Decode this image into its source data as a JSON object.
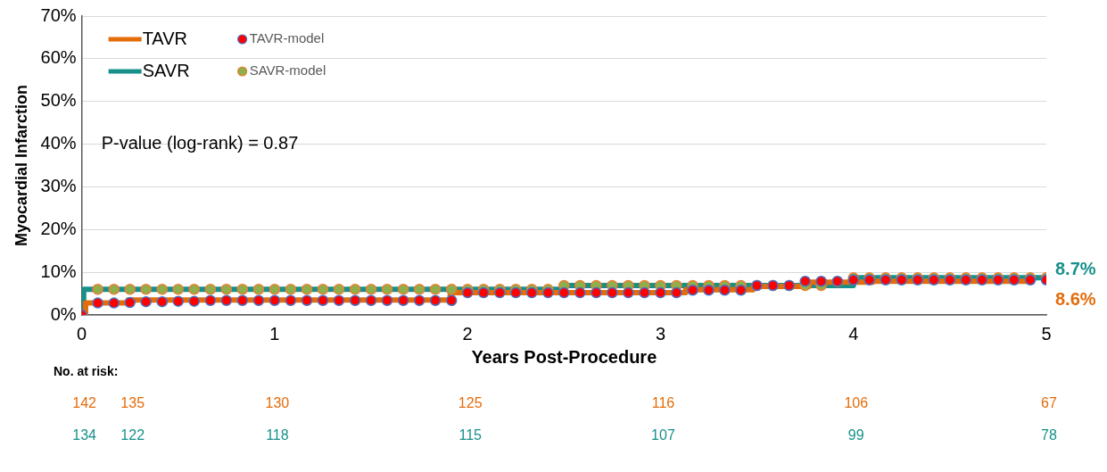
{
  "chart_data": {
    "type": "step",
    "xlabel": "Years Post-Procedure",
    "ylabel": "Myocardial Infarction",
    "xlim": [
      0,
      5
    ],
    "xticks": [
      0,
      1,
      2,
      3,
      4,
      5
    ],
    "ylim": [
      0,
      70
    ],
    "yticks": [
      {
        "value": 0,
        "label": "0%"
      },
      {
        "value": 10,
        "label": "10%"
      },
      {
        "value": 20,
        "label": "20%"
      },
      {
        "value": 30,
        "label": "30%"
      },
      {
        "value": 40,
        "label": "40%"
      },
      {
        "value": 50,
        "label": "50%"
      },
      {
        "value": 60,
        "label": "60%"
      },
      {
        "value": 70,
        "label": "70%"
      }
    ],
    "grid": "y",
    "legend": "top left",
    "x": [
      0,
      0.083,
      0.167,
      0.25,
      0.333,
      0.417,
      0.5,
      0.583,
      0.667,
      0.75,
      0.833,
      0.917,
      1,
      1.083,
      1.167,
      1.25,
      1.333,
      1.417,
      1.5,
      1.583,
      1.667,
      1.75,
      1.833,
      1.917,
      2,
      2.083,
      2.167,
      2.25,
      2.333,
      2.417,
      2.5,
      2.583,
      2.667,
      2.75,
      2.833,
      2.917,
      3,
      3.083,
      3.167,
      3.25,
      3.333,
      3.417,
      3.5,
      3.583,
      3.667,
      3.75,
      3.833,
      3.917,
      4,
      4.083,
      4.167,
      4.25,
      4.333,
      4.417,
      4.5,
      4.583,
      4.667,
      4.75,
      4.833,
      4.917,
      5
    ],
    "series": [
      {
        "name": "TAVR",
        "color": "#e46c0a",
        "x": [
          0,
          0.02,
          0.24,
          1.91,
          3.13,
          3.48,
          3.77,
          4.1,
          4.94
        ],
        "values": [
          0,
          2.8,
          3.5,
          5.2,
          5.9,
          6.7,
          7.7,
          7.9,
          7.9
        ]
      },
      {
        "name": "SAVR",
        "color": "#17908a",
        "x": [
          0,
          0.01,
          2.5,
          4.0,
          5.0
        ],
        "values": [
          0,
          6.0,
          6.9,
          8.7,
          8.7
        ]
      },
      {
        "name": "TAVR-model",
        "type": "scatter",
        "marker": "circle",
        "color": "#ff0000",
        "values": [
          0,
          2.8,
          2.8,
          2.9,
          3.1,
          3.1,
          3.2,
          3.2,
          3.4,
          3.4,
          3.4,
          3.4,
          3.4,
          3.4,
          3.4,
          3.4,
          3.4,
          3.4,
          3.4,
          3.4,
          3.4,
          3.4,
          3.4,
          3.4,
          5.2,
          5.2,
          5.2,
          5.2,
          5.2,
          5.2,
          5.2,
          5.2,
          5.2,
          5.2,
          5.2,
          5.2,
          5.2,
          5.2,
          5.8,
          5.8,
          5.8,
          5.8,
          6.9,
          6.9,
          6.9,
          7.9,
          7.9,
          7.9,
          8.2,
          8.2,
          8.2,
          8.2,
          8.2,
          8.2,
          8.2,
          8.2,
          8.2,
          8.2,
          8.2,
          8.2,
          8.2
        ]
      },
      {
        "name": "SAVR-model",
        "type": "scatter",
        "marker": "circle",
        "color": "#8db04c",
        "values": [
          0,
          6.0,
          6.0,
          6.0,
          6.0,
          6.0,
          6.0,
          6.0,
          6.0,
          6.0,
          6.0,
          6.0,
          6.0,
          6.0,
          6.0,
          6.0,
          6.0,
          6.0,
          6.0,
          6.0,
          6.0,
          6.0,
          6.0,
          6.0,
          6.0,
          6.0,
          6.0,
          6.0,
          6.0,
          6.0,
          6.9,
          6.9,
          6.9,
          6.9,
          6.9,
          6.9,
          6.9,
          6.9,
          6.9,
          6.9,
          6.9,
          6.9,
          6.9,
          6.9,
          6.9,
          6.9,
          6.9,
          7.8,
          8.7,
          8.7,
          8.7,
          8.7,
          8.7,
          8.7,
          8.7,
          8.7,
          8.7,
          8.7,
          8.7,
          8.7,
          8.7
        ]
      }
    ],
    "annotations": [
      "P-value (log-rank) = 0.87",
      "8.7%",
      "8.6%",
      "No. at risk:",
      "142",
      "135",
      "130",
      "125",
      "116",
      "106",
      "67",
      "134",
      "122",
      "118",
      "115",
      "107",
      "99",
      "78"
    ]
  }
}
